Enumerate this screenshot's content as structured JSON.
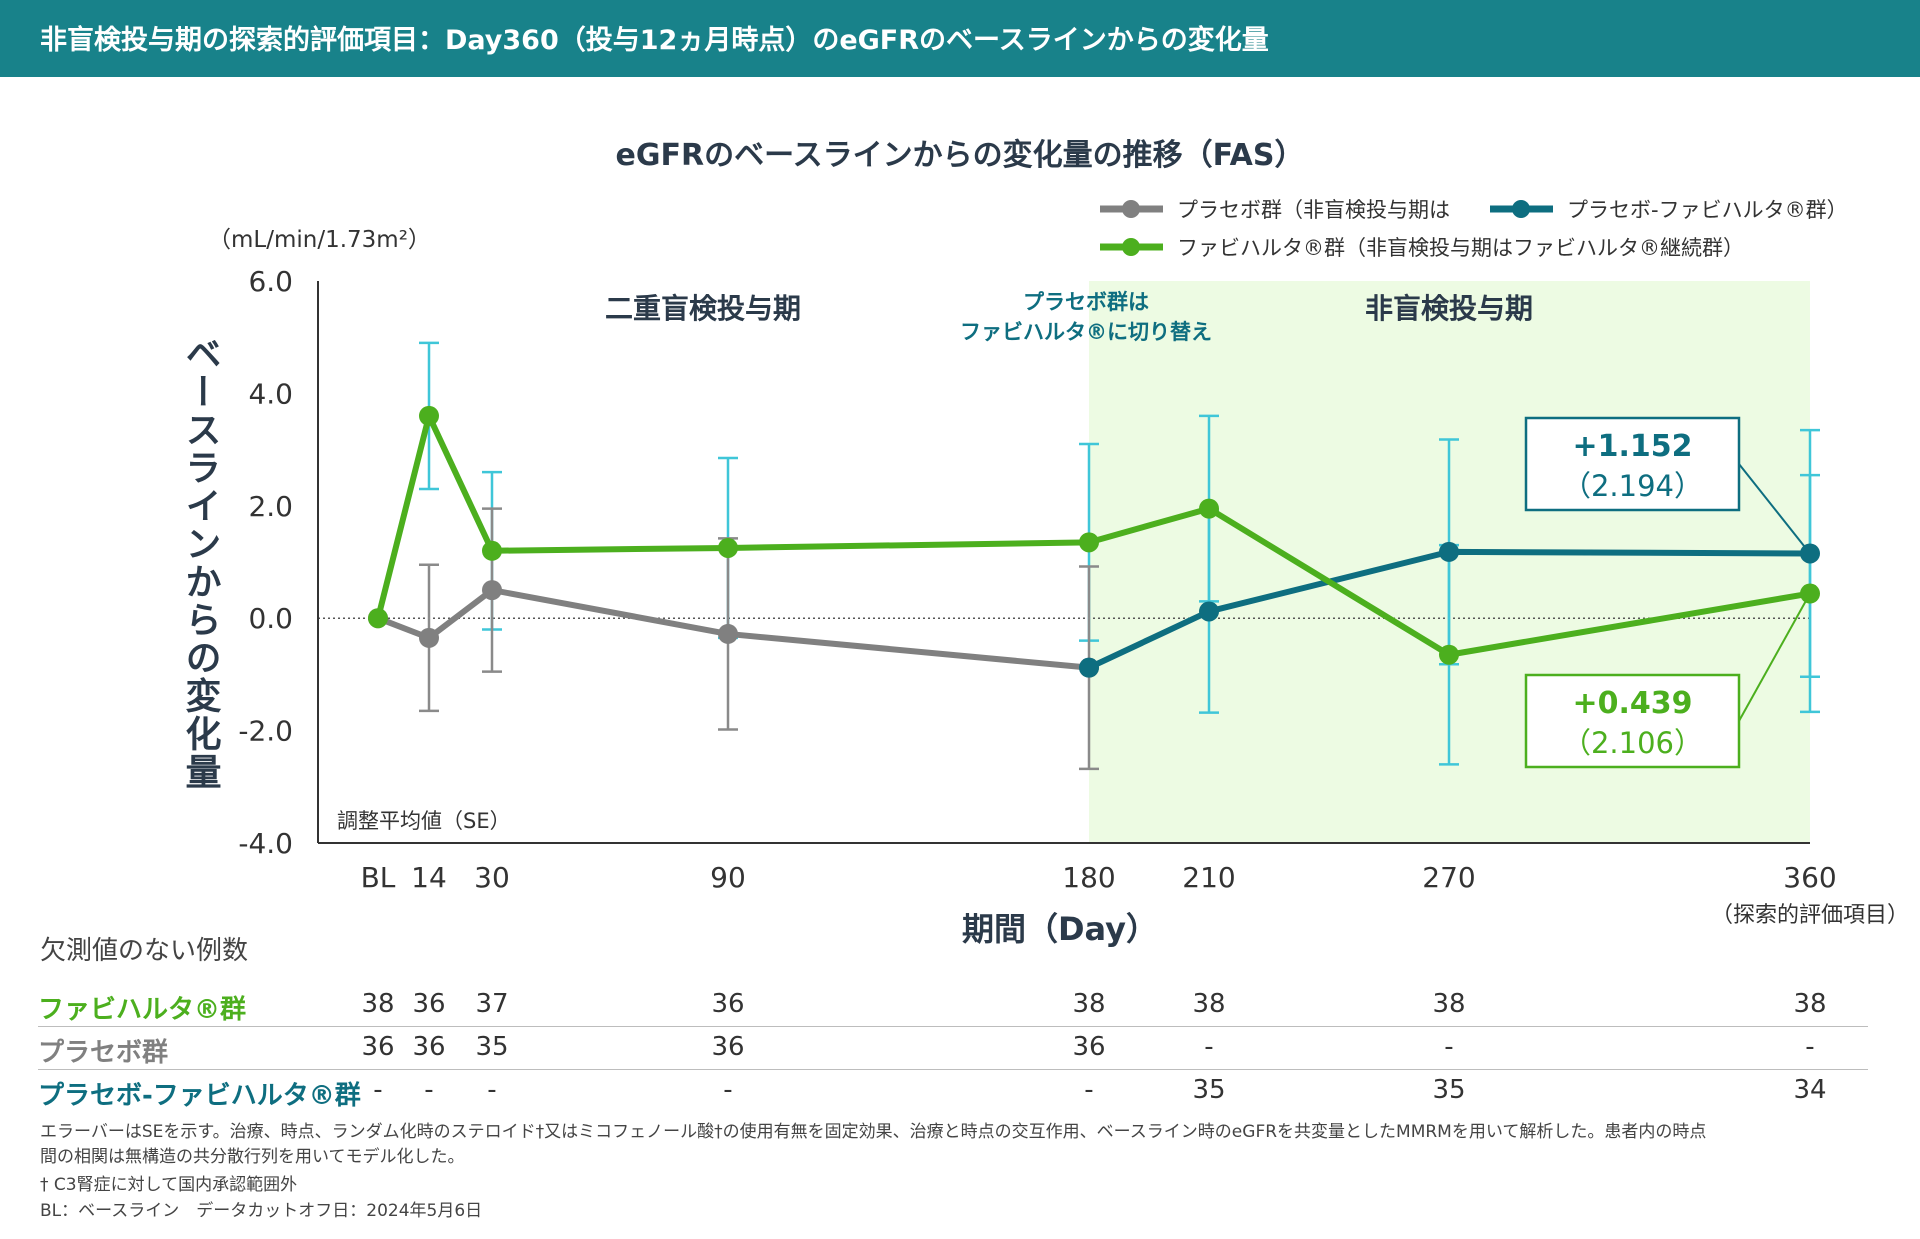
{
  "header": {
    "title": "非盲検投与期の探索的評価項目：Day360（投与12ヵ月時点）のeGFRのベースラインからの変化量"
  },
  "chart_data": {
    "type": "line",
    "title": "eGFRのベースラインからの変化量の推移（FAS）",
    "unit_label": "（mL/min/1.73m²）",
    "ylabel": "ベースラインからの変化量",
    "xlabel": "期間（Day）",
    "x_tick_note": "（探索的評価項目）",
    "ylim": [
      -4.0,
      6.0
    ],
    "y_ticks": [
      6.0,
      4.0,
      2.0,
      0.0,
      -2.0,
      -4.0
    ],
    "y_tick_labels": [
      "6.0",
      "4.0",
      "2.0",
      "0.0",
      "-2.0",
      "-4.0"
    ],
    "x_categories": [
      "BL",
      "14",
      "30",
      "90",
      "180",
      "210",
      "270",
      "360"
    ],
    "x_values": [
      0,
      14,
      30,
      90,
      180,
      210,
      270,
      360
    ],
    "se_note": "調整平均値（SE）",
    "period_labels": {
      "blinded": "二重盲検投与期",
      "open": "非盲検投与期"
    },
    "switch_note": [
      "プラセボ群は",
      "ファビハルタ®に切り替え"
    ],
    "legend": [
      {
        "name": "プラセボ群（非盲検投与期は",
        "color": "#808080"
      },
      {
        "name": "プラセボ-ファビハルタ®群）",
        "color": "#0e6e80"
      },
      {
        "name": "ファビハルタ®群（非盲検投与期はファビハルタ®継続群）",
        "color": "#4caf1e"
      }
    ],
    "series": [
      {
        "name": "ファビハルタ®群",
        "color": "#4caf1e",
        "x": [
          0,
          14,
          30,
          90,
          180,
          210,
          270,
          360
        ],
        "values": [
          0,
          3.6,
          1.2,
          1.25,
          1.35,
          1.95,
          -0.65,
          0.439
        ],
        "error": [
          null,
          1.3,
          1.4,
          1.6,
          1.75,
          1.65,
          1.95,
          2.106
        ]
      },
      {
        "name": "プラセボ群",
        "color": "#808080",
        "x": [
          0,
          14,
          30,
          90,
          180
        ],
        "values": [
          0,
          -0.35,
          0.5,
          -0.28,
          -0.88
        ],
        "error": [
          null,
          1.3,
          1.45,
          1.7,
          1.8
        ]
      },
      {
        "name": "プラセボ-ファビハルタ®群",
        "color": "#0e6e80",
        "x": [
          180,
          210,
          270,
          360
        ],
        "values": [
          -0.88,
          0.12,
          1.18,
          1.152
        ],
        "error": [
          null,
          1.8,
          2.0,
          2.194
        ]
      }
    ],
    "callouts": [
      {
        "value": "+1.152",
        "se": "（2.194）",
        "color": "#0e6e80"
      },
      {
        "value": "+0.439",
        "se": "（2.106）",
        "color": "#4caf1e"
      }
    ]
  },
  "table": {
    "title": "欠測値のない例数",
    "rows": [
      {
        "label": "ファビハルタ®群",
        "color": "#4caf1e",
        "values": [
          "38",
          "36",
          "37",
          "36",
          "38",
          "38",
          "38",
          "38"
        ]
      },
      {
        "label": "プラセボ群",
        "color": "#808080",
        "values": [
          "36",
          "36",
          "35",
          "36",
          "36",
          "-",
          "-",
          "-"
        ]
      },
      {
        "label": "プラセボ-ファビハルタ®群",
        "color": "#0e6e80",
        "values": [
          "-",
          "-",
          "-",
          "-",
          "-",
          "35",
          "35",
          "34"
        ]
      }
    ]
  },
  "footnotes": [
    "エラーバーはSEを示す。治療、時点、ランダム化時のステロイド†又はミコフェノール酸†の使用有無を固定効果、治療と時点の交互作用、ベースライン時のeGFRを共変量としたMMRMを用いて解析した。患者内の時点",
    "間の相関は無構造の共分散行列を用いてモデル化した。",
    "† C3腎症に対して国内承認範囲外",
    "BL：ベースライン　データカットオフ日：2024年5月6日"
  ]
}
